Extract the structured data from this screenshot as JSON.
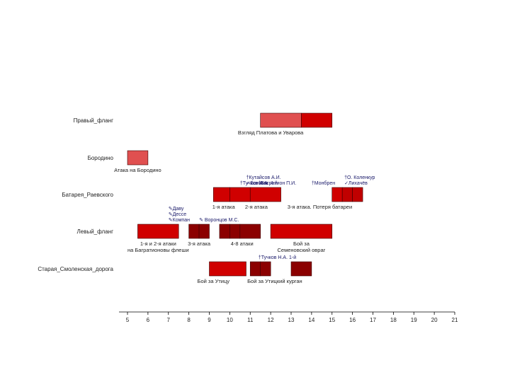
{
  "chart_data": {
    "type": "timeline",
    "xlim": [
      5,
      21
    ],
    "x_ticks": [
      "5",
      "6",
      "7",
      "8",
      "9",
      "10",
      "11",
      "12",
      "13",
      "14",
      "15",
      "16",
      "17",
      "18",
      "19",
      "20",
      "21"
    ],
    "grid": false,
    "categories": [
      "Правый_фланг",
      "Бородино",
      "Батарея_Раевского",
      "Левый_фланг",
      "Старая_Смоленская_дорога"
    ],
    "bars": [
      {
        "row": 0,
        "start": 11.5,
        "end": 13.5,
        "color": "#e05050"
      },
      {
        "row": 0,
        "start": 13.5,
        "end": 15.0,
        "color": "#d00000"
      },
      {
        "row": 1,
        "start": 5.0,
        "end": 6.0,
        "color": "#e05050"
      },
      {
        "row": 2,
        "start": 9.2,
        "end": 10.0,
        "color": "#d00000"
      },
      {
        "row": 2,
        "start": 10.0,
        "end": 11.0,
        "color": "#d00000"
      },
      {
        "row": 2,
        "start": 11.0,
        "end": 12.5,
        "color": "#d00000"
      },
      {
        "row": 2,
        "start": 15.0,
        "end": 15.5,
        "color": "#d00000"
      },
      {
        "row": 2,
        "start": 15.5,
        "end": 16.0,
        "color": "#c00000"
      },
      {
        "row": 2,
        "start": 16.0,
        "end": 16.5,
        "color": "#c00000"
      },
      {
        "row": 3,
        "start": 5.5,
        "end": 7.5,
        "color": "#d00000"
      },
      {
        "row": 3,
        "start": 8.0,
        "end": 8.5,
        "color": "#8b0000"
      },
      {
        "row": 3,
        "start": 8.5,
        "end": 9.0,
        "color": "#8b0000"
      },
      {
        "row": 3,
        "start": 9.5,
        "end": 10.0,
        "color": "#8b0000"
      },
      {
        "row": 3,
        "start": 10.0,
        "end": 10.5,
        "color": "#8b0000"
      },
      {
        "row": 3,
        "start": 10.5,
        "end": 11.5,
        "color": "#8b0000"
      },
      {
        "row": 3,
        "start": 12.0,
        "end": 15.0,
        "color": "#d00000"
      },
      {
        "row": 4,
        "start": 9.0,
        "end": 10.8,
        "color": "#d00000"
      },
      {
        "row": 4,
        "start": 11.0,
        "end": 11.5,
        "color": "#8b0000"
      },
      {
        "row": 4,
        "start": 11.5,
        "end": 12.0,
        "color": "#8b0000"
      },
      {
        "row": 4,
        "start": 13.0,
        "end": 14.0,
        "color": "#8b0000"
      }
    ],
    "bar_labels": [
      {
        "row": 0,
        "x": 12.0,
        "lines": [
          "Взгляд Платова и Уварова"
        ]
      },
      {
        "row": 1,
        "x": 5.5,
        "lines": [
          "Атака на Бородино"
        ]
      },
      {
        "row": 2,
        "x": 9.7,
        "lines": [
          "1-я атака"
        ]
      },
      {
        "row": 2,
        "x": 11.3,
        "lines": [
          "2-я атака"
        ]
      },
      {
        "row": 2,
        "x": 14.4,
        "lines": [
          "3-я атака. Потеря батареи"
        ]
      },
      {
        "row": 3,
        "x": 6.5,
        "lines": [
          "1-я и 2-я атаки",
          "на Багратионовы флеши"
        ]
      },
      {
        "row": 3,
        "x": 8.5,
        "lines": [
          "3-я атака"
        ]
      },
      {
        "row": 3,
        "x": 10.6,
        "lines": [
          "4-8 атаки"
        ]
      },
      {
        "row": 3,
        "x": 13.5,
        "lines": [
          "Бой за",
          "Семеновский овраг"
        ]
      },
      {
        "row": 4,
        "x": 9.2,
        "lines": [
          "Бой за Утицу"
        ]
      },
      {
        "row": 4,
        "x": 12.2,
        "lines": [
          "Бой за Утицкий курган"
        ]
      }
    ],
    "annotations": [
      {
        "row": 2,
        "x": 10.8,
        "lines": [
          "†Кутайсов А.И.",
          "✓Бонами"
        ]
      },
      {
        "row": 2,
        "x": 14.0,
        "lines": [
          "†Монбрен"
        ]
      },
      {
        "row": 2,
        "x": 15.6,
        "lines": [
          "†О. Коленкур",
          "✓Лихачёв"
        ]
      },
      {
        "row": 2,
        "x": 11.4,
        "lines": [
          "†Багратион П.И."
        ]
      },
      {
        "row": 2,
        "x": 10.5,
        "lines": [
          "†Тучков А.А. 4-й"
        ]
      },
      {
        "row": 3,
        "x": 7.0,
        "lines": [
          "✎Даву",
          "✎Дессе",
          "✎Компан"
        ]
      },
      {
        "row": 3,
        "x": 8.5,
        "lines": [
          "✎ Воронцов М.С."
        ]
      },
      {
        "row": 4,
        "x": 11.4,
        "lines": [
          "†Тучков Н.А. 1-й"
        ]
      }
    ]
  }
}
